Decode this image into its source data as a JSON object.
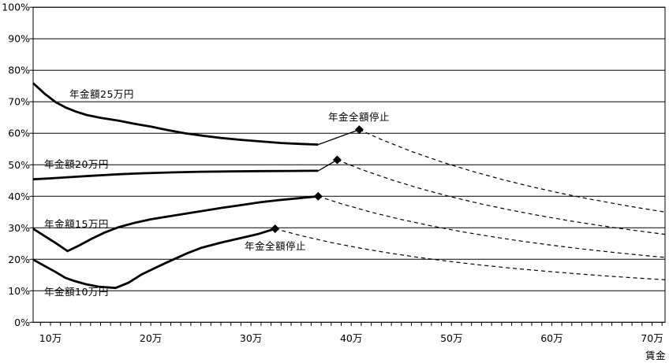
{
  "chart_data": {
    "type": "line",
    "title": "",
    "xlabel": "賃金",
    "ylabel": "",
    "x_range": [
      8.27,
      71.3
    ],
    "y_range": [
      0,
      100
    ],
    "grid": "horizontal",
    "legend": "none",
    "colors": {
      "line": "#000000",
      "background": "#ffffff"
    },
    "x_ticks_minor": {
      "from": 9,
      "to": 71,
      "step": 1
    },
    "x_tick_labels": [
      {
        "value": 10,
        "label": "10万"
      },
      {
        "value": 20,
        "label": "20万"
      },
      {
        "value": 30,
        "label": "30万"
      },
      {
        "value": 40,
        "label": "40万"
      },
      {
        "value": 50,
        "label": "50万"
      },
      {
        "value": 60,
        "label": "60万"
      },
      {
        "value": 70,
        "label": "70万"
      }
    ],
    "y_tick_labels": [
      {
        "value": 100,
        "label": "100%"
      },
      {
        "value": 90,
        "label": "90%"
      },
      {
        "value": 80,
        "label": "80%"
      },
      {
        "value": 70,
        "label": "70%"
      },
      {
        "value": 60,
        "label": "60%"
      },
      {
        "value": 50,
        "label": "50%"
      },
      {
        "value": 40,
        "label": "40%"
      },
      {
        "value": 30,
        "label": "30%"
      },
      {
        "value": 20,
        "label": "20%"
      },
      {
        "value": 10,
        "label": "10%"
      },
      {
        "value": 0,
        "label": "0%"
      }
    ],
    "series": [
      {
        "name": "年金額25万円",
        "marker_shape": "diamond",
        "solid": [
          [
            8.27,
            75.9
          ],
          [
            9.4,
            72.6
          ],
          [
            10.5,
            69.9
          ],
          [
            11.5,
            68.2
          ],
          [
            12.5,
            66.9
          ],
          [
            13.6,
            65.8
          ],
          [
            15,
            64.9
          ],
          [
            16.8,
            64
          ],
          [
            18.4,
            63
          ],
          [
            20,
            62.1
          ],
          [
            21.7,
            61
          ],
          [
            23.4,
            60
          ],
          [
            25.2,
            59.2
          ],
          [
            27,
            58.5
          ],
          [
            29,
            57.9
          ],
          [
            31,
            57.4
          ],
          [
            33,
            56.9
          ],
          [
            35,
            56.6
          ],
          [
            36.7,
            56.4
          ]
        ],
        "rise": [
          [
            36.7,
            56.4
          ],
          [
            40.8,
            61.15
          ]
        ],
        "marker": [
          40.8,
          61.15
        ],
        "dashed": [
          [
            40.8,
            61.15
          ],
          [
            43,
            58.02
          ],
          [
            46,
            54.24
          ],
          [
            49,
            50.92
          ],
          [
            52,
            47.98
          ],
          [
            55,
            45.36
          ],
          [
            58,
            43.02
          ],
          [
            61,
            40.9
          ],
          [
            64,
            38.98
          ],
          [
            67,
            37.24
          ],
          [
            69,
            36.16
          ],
          [
            71.3,
            35
          ]
        ]
      },
      {
        "name": "年金額20万円",
        "marker_shape": "diamond",
        "solid": [
          [
            8.27,
            45.4
          ],
          [
            10,
            45.7
          ],
          [
            12,
            46.1
          ],
          [
            14,
            46.5
          ],
          [
            16.8,
            47
          ],
          [
            19,
            47.3
          ],
          [
            22.3,
            47.6
          ],
          [
            25,
            47.8
          ],
          [
            28,
            47.9
          ],
          [
            31,
            48
          ],
          [
            34,
            48.05
          ],
          [
            36.7,
            48.1
          ]
        ],
        "rise": [
          [
            36.7,
            48.1
          ],
          [
            38.6,
            51.55
          ]
        ],
        "marker": [
          38.6,
          51.55
        ],
        "dashed": [
          [
            38.6,
            51.55
          ],
          [
            41,
            48.54
          ],
          [
            44,
            45.23
          ],
          [
            47,
            42.34
          ],
          [
            50,
            39.8
          ],
          [
            53,
            37.55
          ],
          [
            56,
            35.54
          ],
          [
            59,
            33.73
          ],
          [
            62,
            32.1
          ],
          [
            65,
            30.62
          ],
          [
            68,
            29.26
          ],
          [
            71.3,
            27.91
          ]
        ]
      },
      {
        "name": "年金額15万円",
        "marker_shape": "diamond",
        "solid": [
          [
            8.27,
            29.7
          ],
          [
            9.4,
            27.4
          ],
          [
            10.6,
            25
          ],
          [
            11.7,
            22.6
          ],
          [
            12.8,
            24.3
          ],
          [
            14.1,
            26.5
          ],
          [
            15.4,
            28.5
          ],
          [
            16.8,
            30.2
          ],
          [
            18.3,
            31.5
          ],
          [
            20,
            32.7
          ],
          [
            22.3,
            33.9
          ],
          [
            24.5,
            35
          ],
          [
            27,
            36.3
          ],
          [
            29,
            37.2
          ],
          [
            30.9,
            38.1
          ],
          [
            32.8,
            38.8
          ],
          [
            34.8,
            39.4
          ],
          [
            36.7,
            40
          ]
        ],
        "marker": [
          36.7,
          40
        ],
        "dashed": [
          [
            36.7,
            40
          ],
          [
            39,
            37.64
          ],
          [
            42,
            34.95
          ],
          [
            45,
            32.62
          ],
          [
            48,
            30.58
          ],
          [
            51,
            28.78
          ],
          [
            54,
            27.19
          ],
          [
            57,
            25.75
          ],
          [
            60,
            24.47
          ],
          [
            63,
            23.3
          ],
          [
            66,
            22.24
          ],
          [
            69,
            21.28
          ],
          [
            71.3,
            20.59
          ]
        ]
      },
      {
        "name": "年金額10万円",
        "marker_shape": "diamond",
        "solid": [
          [
            8.27,
            19.9
          ],
          [
            9.4,
            17.9
          ],
          [
            10.5,
            16
          ],
          [
            11.5,
            14.1
          ],
          [
            12.4,
            13.1
          ],
          [
            13.5,
            12.1
          ],
          [
            14.8,
            11.3
          ],
          [
            16.5,
            10.9
          ],
          [
            17.8,
            12.6
          ],
          [
            19.1,
            15.2
          ],
          [
            20.2,
            16.9
          ],
          [
            21.2,
            18.4
          ],
          [
            22.3,
            20
          ],
          [
            23.7,
            22
          ],
          [
            25,
            23.6
          ],
          [
            27,
            25.3
          ],
          [
            28.8,
            26.6
          ],
          [
            30.7,
            28
          ],
          [
            32.4,
            29.69
          ]
        ],
        "marker": [
          32.4,
          29.69
        ],
        "dashed": [
          [
            32.4,
            29.69
          ],
          [
            35,
            27.49
          ],
          [
            38,
            25.32
          ],
          [
            41,
            23.46
          ],
          [
            44,
            21.86
          ],
          [
            47,
            20.47
          ],
          [
            50,
            19.24
          ],
          [
            53,
            18.15
          ],
          [
            56,
            17.18
          ],
          [
            59,
            16.31
          ],
          [
            62,
            15.52
          ],
          [
            65,
            14.8
          ],
          [
            68,
            14.15
          ],
          [
            71.3,
            13.49
          ]
        ]
      }
    ],
    "annotations": [
      {
        "text": "年金全額停止",
        "target_series": "年金額25万円"
      },
      {
        "text": "年金全額停止",
        "target_series": "年金額10万円"
      }
    ]
  }
}
